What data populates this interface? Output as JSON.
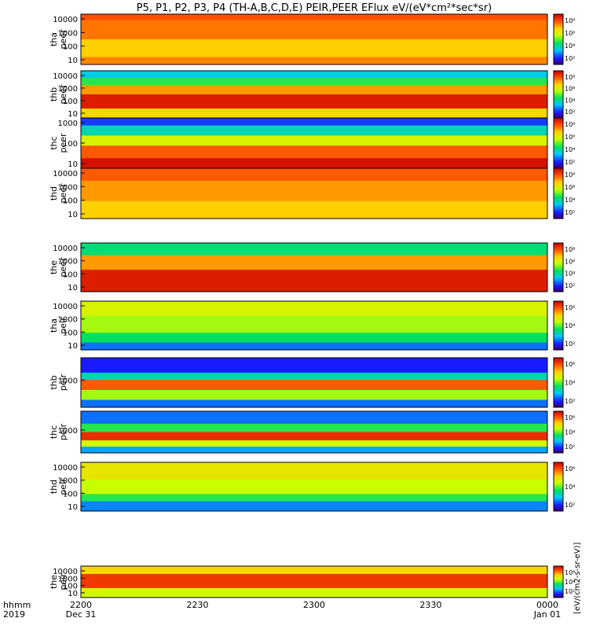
{
  "chart_data": {
    "type": "heatmap",
    "title": "P5, P1, P2, P3, P4 (TH-A,B,C,D,E) PEIR,PEER EFlux eV/(eV*cm²*sec*sr)",
    "x_axis": {
      "ticks": [
        "2200",
        "2230",
        "2300",
        "2330",
        "0000"
      ],
      "dates": [
        "Dec 31",
        "Jan 01"
      ],
      "row_labels": [
        "hhmm",
        "2019"
      ]
    },
    "colorbar_label": "[eV/(cm2-s-sr-eV)]",
    "colorbar_ticks": [
      "10⁶",
      "10⁴",
      "10²"
    ],
    "colorbar_ticks_electron": [
      "10⁸",
      "10⁶",
      "10⁴",
      "10²"
    ],
    "panels": [
      {
        "label1": "tha",
        "label2": "peer",
        "yticks": [
          "10000",
          "1000",
          "100",
          "10"
        ],
        "species": "electron",
        "probe": "tha"
      },
      {
        "label1": "thb",
        "label2": "peer",
        "yticks": [
          "10000",
          "1000",
          "100",
          "10"
        ],
        "species": "electron",
        "probe": "thb"
      },
      {
        "label1": "thc",
        "label2": "peer",
        "yticks": [
          "1000",
          "100",
          "10"
        ],
        "species": "electron",
        "probe": "thc"
      },
      {
        "label1": "thd",
        "label2": "peer",
        "yticks": [
          "10000",
          "1000",
          "100",
          "10"
        ],
        "species": "electron",
        "probe": "thd"
      },
      {
        "label1": "the",
        "label2": "peer",
        "yticks": [
          "10000",
          "1000",
          "100",
          "10"
        ],
        "species": "electron",
        "probe": "the"
      },
      {
        "label1": "tha",
        "label2": "peir",
        "yticks": [
          "10000",
          "1000",
          "100",
          "10"
        ],
        "species": "ion",
        "probe": "tha"
      },
      {
        "label1": "thb",
        "label2": "peir",
        "yticks": [
          "1000"
        ],
        "species": "ion",
        "probe": "thb"
      },
      {
        "label1": "thc",
        "label2": "peir",
        "yticks": [
          "1000"
        ],
        "species": "ion",
        "probe": "thc"
      },
      {
        "label1": "thd",
        "label2": "peir",
        "yticks": [
          "10000",
          "1000",
          "100",
          "10"
        ],
        "species": "ion",
        "probe": "thd"
      },
      {
        "label1": "the",
        "label2": "peir",
        "yticks": [
          "10000",
          "1000",
          "100",
          "10"
        ],
        "species": "ion",
        "probe": "the"
      }
    ]
  }
}
